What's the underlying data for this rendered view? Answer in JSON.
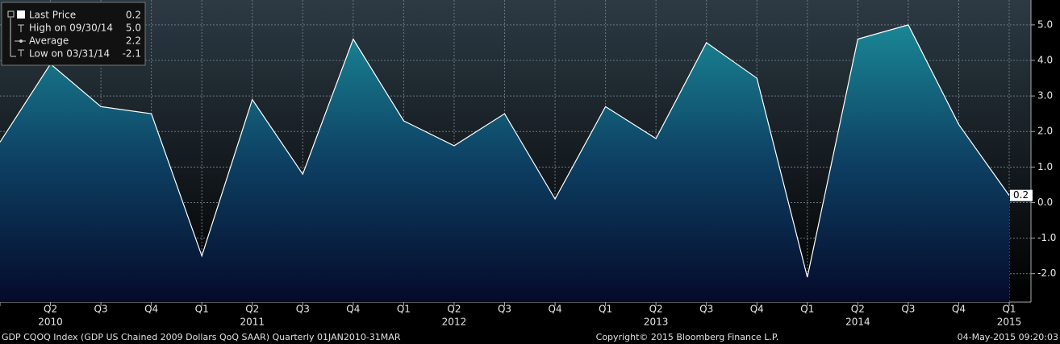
{
  "chart_data": {
    "type": "area",
    "categories": [
      null,
      "Q2",
      "Q3",
      "Q4",
      "Q1",
      "Q2",
      "Q3",
      "Q4",
      "Q1",
      "Q2",
      "Q3",
      "Q4",
      "Q1",
      "Q2",
      "Q3",
      "Q4",
      "Q1",
      "Q2",
      "Q3",
      "Q4",
      "Q1"
    ],
    "year_labels": [
      null,
      "2010",
      null,
      null,
      null,
      "2011",
      null,
      null,
      null,
      "2012",
      null,
      null,
      null,
      "2013",
      null,
      null,
      null,
      "2014",
      null,
      null,
      "2015"
    ],
    "series": [
      {
        "name": "Last Price",
        "color": "#ffffff",
        "values": [
          1.7,
          3.9,
          2.7,
          2.5,
          -1.5,
          2.9,
          0.8,
          4.6,
          2.3,
          1.6,
          2.5,
          0.1,
          2.7,
          1.8,
          4.5,
          3.5,
          -2.1,
          4.6,
          5.0,
          2.2,
          0.2
        ]
      }
    ],
    "ylim": [
      -2.8,
      5.7
    ],
    "yticks": [
      {
        "value": 5,
        "label": "5.0"
      },
      {
        "value": 4,
        "label": "4.0"
      },
      {
        "value": 3,
        "label": "3.0"
      },
      {
        "value": 2,
        "label": "2.0"
      },
      {
        "value": 1,
        "label": "1.0"
      },
      {
        "value": 0,
        "label": "0.0"
      },
      {
        "value": -1,
        "label": "-1.0"
      },
      {
        "value": -2,
        "label": "-2.0"
      }
    ],
    "grid": true,
    "legend": {
      "labels": [
        "Last Price",
        "High on 09/30/14",
        "Average",
        "Low on 03/31/14"
      ],
      "value_labels": [
        "0.2",
        "5.0",
        "2.2",
        "-2.1"
      ]
    },
    "footer": {
      "left": "GDP CQOQ Index (GDP US Chained 2009 Dollars QoQ SAAR)  Quarterly 01JAN2010-31MAR",
      "center": "Copyright© 2015 Bloomberg Finance L.P.",
      "right": "04-May-2015 09:20:03"
    }
  }
}
